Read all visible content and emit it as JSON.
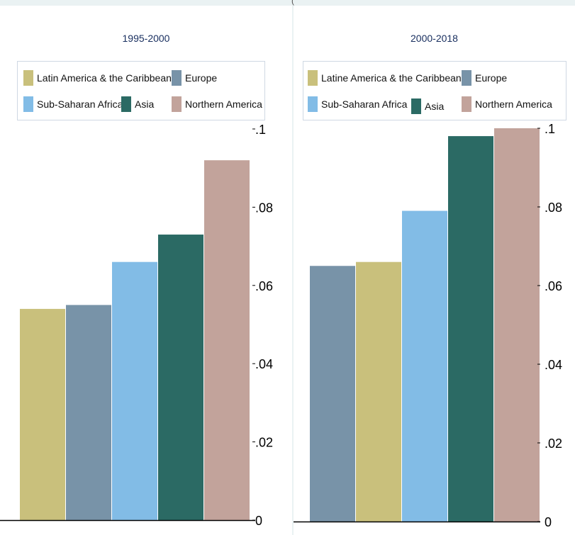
{
  "page_header_fragment": "(",
  "colors": {
    "Latin America & the Caribbean": "#c9c07c",
    "Europe": "#7893a8",
    "Sub-Saharan Africa": "#82bce6",
    "Asia": "#2b6a64",
    "Northern America": "#c2a39b"
  },
  "chart_data": [
    {
      "type": "bar",
      "title": "1995-2000",
      "legend": [
        "Latin America & the Caribbean",
        "Europe",
        "Sub-Saharan Africa",
        "Asia",
        "Northern America"
      ],
      "categories": [
        "Latin America & the Caribbean",
        "Europe",
        "Sub-Saharan Africa",
        "Asia",
        "Northern America"
      ],
      "values": [
        0.054,
        0.055,
        0.066,
        0.073,
        0.092
      ],
      "ylim": [
        0,
        0.1
      ],
      "yticks": [
        "0",
        ".02",
        ".04",
        ".06",
        ".08",
        ".1"
      ],
      "yaxis_side": "right",
      "legend_position": "top",
      "grid": false
    },
    {
      "type": "bar",
      "title": "2000-2018",
      "legend": [
        "Latine America & the Caribbean",
        "Europe",
        "Sub-Saharan Africa",
        "Asia",
        "Northern America"
      ],
      "categories": [
        "Europe",
        "Latin America & the Caribbean",
        "Sub-Saharan Africa",
        "Asia",
        "Northern America"
      ],
      "values": [
        0.065,
        0.066,
        0.079,
        0.098,
        0.1
      ],
      "ylim": [
        0,
        0.1
      ],
      "yticks": [
        "0",
        ".02",
        ".04",
        ".06",
        ".08",
        ".1"
      ],
      "yaxis_side": "right",
      "legend_position": "top",
      "grid": false
    }
  ]
}
